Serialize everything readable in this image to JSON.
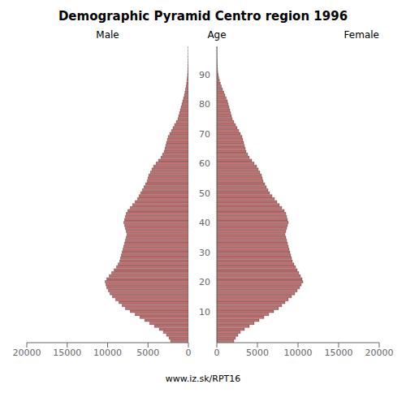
{
  "chart_data": {
    "type": "bar",
    "orientation": "horizontal",
    "title": "Demographic Pyramid Centro region 1996",
    "ylabel": "Age",
    "annotations": [
      "www.iz.sk/RPT16"
    ],
    "categories": [
      null,
      null,
      null,
      null,
      null,
      null,
      null,
      null,
      null,
      null,
      "10",
      null,
      null,
      null,
      null,
      null,
      null,
      null,
      null,
      null,
      "20",
      null,
      null,
      null,
      null,
      null,
      null,
      null,
      null,
      null,
      "30",
      null,
      null,
      null,
      null,
      null,
      null,
      null,
      null,
      null,
      "40",
      null,
      null,
      null,
      null,
      null,
      null,
      null,
      null,
      null,
      "50",
      null,
      null,
      null,
      null,
      null,
      null,
      null,
      null,
      null,
      "60",
      null,
      null,
      null,
      null,
      null,
      null,
      null,
      null,
      null,
      "70",
      null,
      null,
      null,
      null,
      null,
      null,
      null,
      null,
      null,
      "80",
      null,
      null,
      null,
      null,
      null,
      null,
      null,
      null,
      null,
      "90",
      null,
      null,
      null,
      null,
      null,
      null,
      null,
      null,
      null
    ],
    "series": [
      {
        "name": "Male",
        "color": "#c87070",
        "values": [
          2200,
          2400,
          2700,
          3100,
          3600,
          4200,
          4800,
          5400,
          6000,
          6600,
          7200,
          7800,
          8200,
          8600,
          9000,
          9400,
          9700,
          9900,
          10100,
          10200,
          10300,
          10100,
          9800,
          9500,
          9200,
          8900,
          8700,
          8500,
          8400,
          8300,
          8200,
          8100,
          8000,
          7900,
          7800,
          7700,
          7600,
          7700,
          7800,
          7900,
          8000,
          7900,
          7800,
          7700,
          7500,
          7200,
          6900,
          6600,
          6300,
          6100,
          5900,
          5700,
          5500,
          5300,
          5100,
          5000,
          4900,
          4700,
          4500,
          4300,
          4000,
          3700,
          3400,
          3200,
          3000,
          2900,
          2800,
          2700,
          2600,
          2500,
          2300,
          2100,
          1900,
          1700,
          1500,
          1300,
          1200,
          1100,
          1000,
          900,
          800,
          700,
          600,
          500,
          420,
          350,
          280,
          220,
          170,
          130,
          100,
          75,
          55,
          40,
          30,
          20,
          15,
          10,
          7,
          5
        ]
      },
      {
        "name": "Female",
        "color": "#c87070",
        "values": [
          2100,
          2300,
          2600,
          2900,
          3400,
          4000,
          4600,
          5200,
          5800,
          6400,
          7000,
          7600,
          8000,
          8400,
          8800,
          9200,
          9600,
          9900,
          10200,
          10400,
          10600,
          10500,
          10300,
          10100,
          9900,
          9700,
          9500,
          9300,
          9200,
          9100,
          9000,
          8900,
          8800,
          8700,
          8600,
          8500,
          8400,
          8500,
          8600,
          8700,
          8800,
          8700,
          8600,
          8500,
          8300,
          8000,
          7700,
          7400,
          7100,
          6800,
          6500,
          6300,
          6100,
          5900,
          5700,
          5600,
          5500,
          5300,
          5100,
          4900,
          4600,
          4300,
          4000,
          3800,
          3600,
          3500,
          3400,
          3300,
          3200,
          3100,
          2900,
          2700,
          2500,
          2300,
          2100,
          1900,
          1800,
          1700,
          1600,
          1500,
          1400,
          1300,
          1150,
          1000,
          850,
          700,
          560,
          430,
          320,
          230,
          160,
          110,
          75,
          52,
          36,
          24,
          16,
          10,
          6,
          4
        ]
      }
    ],
    "xlim": [
      0,
      20000
    ],
    "xticks": [
      0,
      5000,
      10000,
      15000,
      20000
    ]
  }
}
